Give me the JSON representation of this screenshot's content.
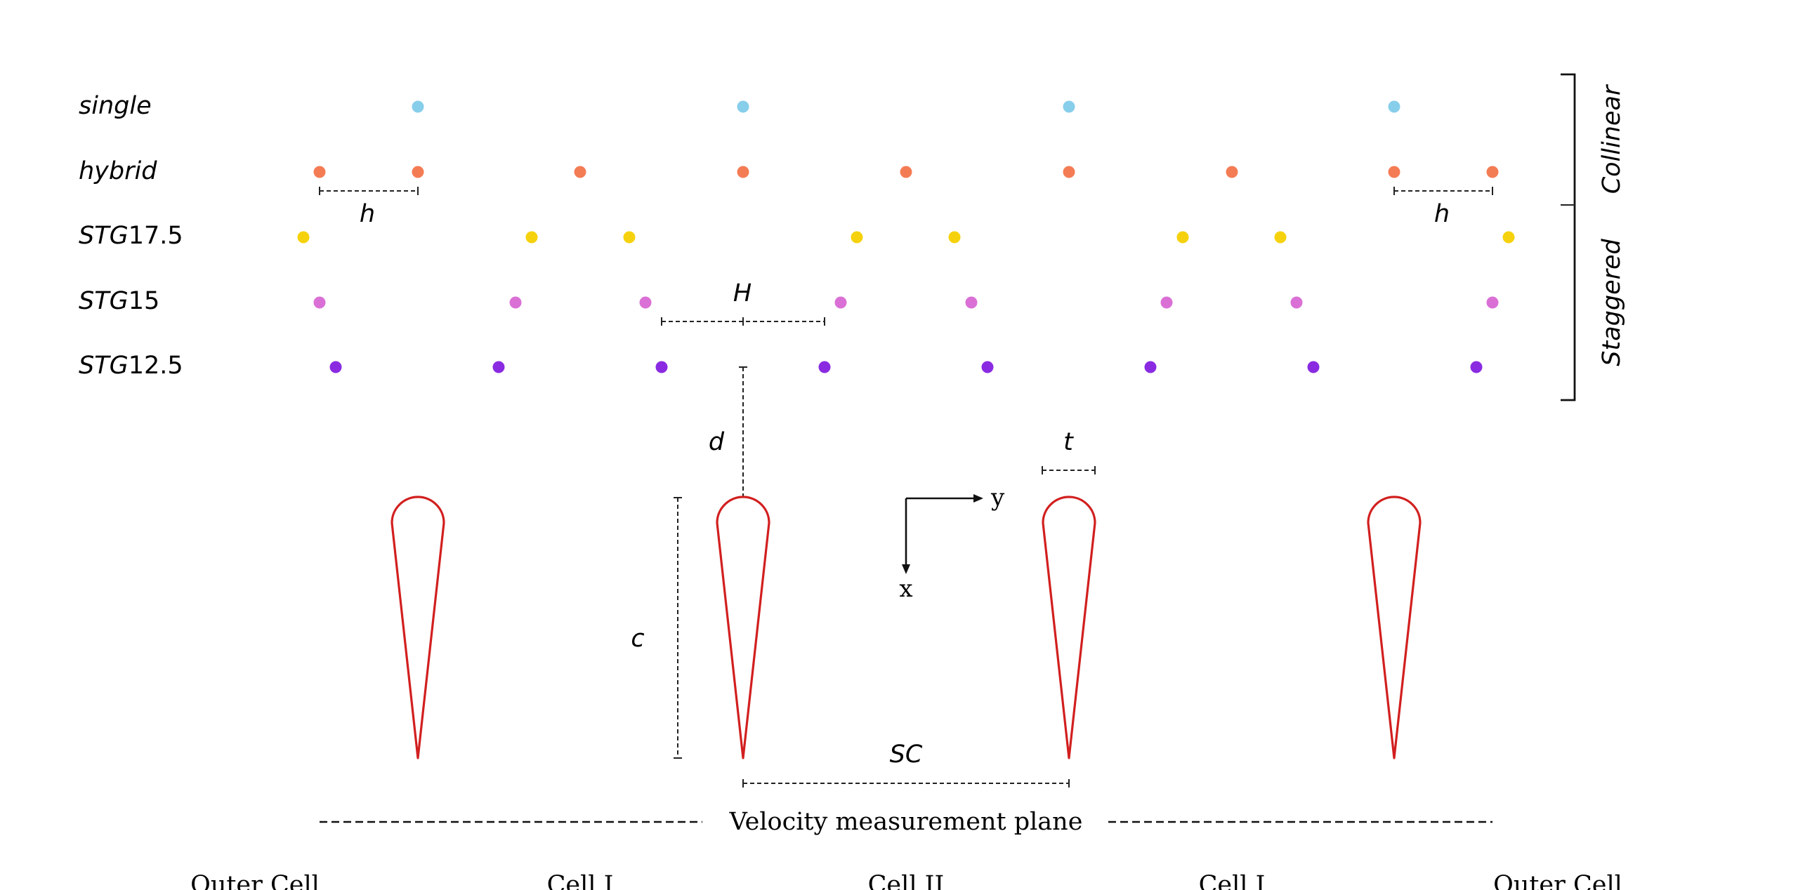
{
  "rows": [
    {
      "id": "single",
      "label_italic": "single",
      "label_rest": "",
      "color": "#87ceeb"
    },
    {
      "id": "hybrid",
      "label_italic": "hybrid",
      "label_rest": "",
      "color": "#f47c55"
    },
    {
      "id": "stg175",
      "label_italic": "STG",
      "label_rest": "17.5",
      "color": "#f5d20d"
    },
    {
      "id": "stg15",
      "label_italic": "STG",
      "label_rest": "15",
      "color": "#da70d6"
    },
    {
      "id": "stg125",
      "label_italic": "STG",
      "label_rest": "12.5",
      "color": "#8a2be2"
    }
  ],
  "groups": {
    "collinear": "Collinear",
    "staggered": "Staggered"
  },
  "dimensions": {
    "h_left": "h",
    "h_right": "h",
    "H": "H",
    "d": "d",
    "t": "t",
    "c": "c",
    "SC": "SC"
  },
  "axes": {
    "y": "y",
    "x": "x"
  },
  "measurement_plane": "Velocity measurement plane",
  "cells": [
    "Outer Cell",
    "Cell I",
    "Cell II",
    "Cell I",
    "Outer Cell"
  ],
  "colors": {
    "airfoil": "#d21f1f",
    "lines": "#111111"
  }
}
